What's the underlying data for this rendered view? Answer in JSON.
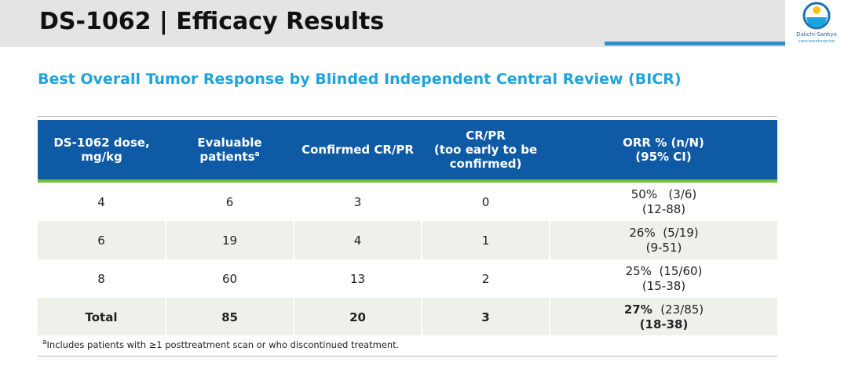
{
  "header": {
    "title": "DS-1062 | Efficacy Results",
    "logo_name": "Daiichi-Sankyo",
    "logo_tagline": "cancerenterprise",
    "accent_color": "#2a8fc4"
  },
  "subtitle": "Best Overall Tumor Response by Blinded Independent Central Review (BICR)",
  "table": {
    "header_color": "#0f5aa5",
    "header_rule_color": "#6fbf3f",
    "columns": {
      "dose": "DS-1062 dose, mg/kg",
      "evaluable": "Evaluable patients",
      "evaluable_sup": "a",
      "confirmed": "Confirmed CR/PR",
      "crpr_line1": "CR/PR",
      "crpr_line2": "(too early to be confirmed)",
      "orr_line1": "ORR % (n/N)",
      "orr_line2": "(95% CI)"
    },
    "rows": [
      {
        "dose": "4",
        "evaluable": "6",
        "confirmed": "3",
        "crpr": "0",
        "orr_pct": "50%",
        "orr_n": "(3/6)",
        "orr_ci": "(12-88)"
      },
      {
        "dose": "6",
        "evaluable": "19",
        "confirmed": "4",
        "crpr": "1",
        "orr_pct": "26%",
        "orr_n": "(5/19)",
        "orr_ci": "(9-51)"
      },
      {
        "dose": "8",
        "evaluable": "60",
        "confirmed": "13",
        "crpr": "2",
        "orr_pct": "25%",
        "orr_n": "(15/60)",
        "orr_ci": "(15-38)"
      }
    ],
    "total": {
      "dose": "Total",
      "evaluable": "85",
      "confirmed": "20",
      "crpr": "3",
      "orr_pct": "27%",
      "orr_n": "(23/85)",
      "orr_ci": "(18-38)"
    }
  },
  "footnote": {
    "sup": "a",
    "text": "Includes patients with ≥1 posttreatment scan or who discontinued treatment."
  }
}
